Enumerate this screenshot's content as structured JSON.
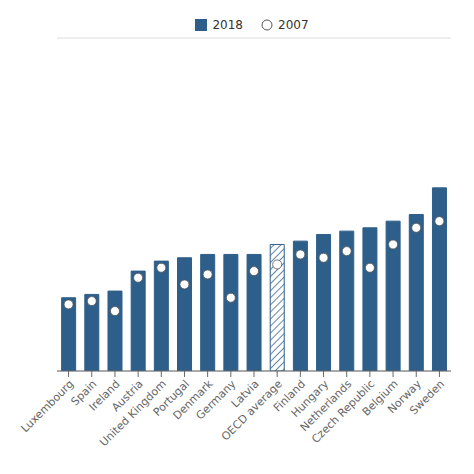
{
  "chart_data": {
    "type": "bar",
    "categories": [
      "Luxembourg",
      "Spain",
      "Ireland",
      "Austria",
      "United Kingdom",
      "Portugal",
      "Denmark",
      "Germany",
      "Latvia",
      "OECD average",
      "Finland",
      "Hungary",
      "Netherlands",
      "Czech Republic",
      "Belgium",
      "Norway",
      "Sweden"
    ],
    "series": [
      {
        "name": "2018",
        "type": "bar",
        "color": "#2e5f8a",
        "colors": [
          "#2e5f8a",
          "#2e5f8a",
          "#2e5f8a",
          "#2e5f8a",
          "#2e5f8a",
          "#2e5f8a",
          "#2e5f8a",
          "#2e5f8a",
          "#2e5f8a",
          "white",
          "#2e5f8a",
          "#2e5f8a",
          "#2e5f8a",
          "#2e5f8a",
          "#2e5f8a",
          "#2e5f8a",
          "#2e5f8a"
        ],
        "values": [
          22,
          23,
          24,
          30,
          33,
          34,
          35,
          35,
          35,
          38,
          39,
          41,
          42,
          43,
          45,
          47,
          55
        ]
      },
      {
        "name": "2007",
        "type": "scatter",
        "color": "white",
        "values": [
          20,
          21,
          18,
          28,
          31,
          26,
          29,
          22,
          30,
          32,
          35,
          34,
          36,
          31,
          38,
          43,
          45
        ]
      }
    ],
    "ylim": [
      0,
      100
    ],
    "yticks": [
      0,
      20,
      40,
      60,
      80,
      100
    ],
    "grid": true,
    "legend": "top",
    "tick_labels": "x"
  }
}
